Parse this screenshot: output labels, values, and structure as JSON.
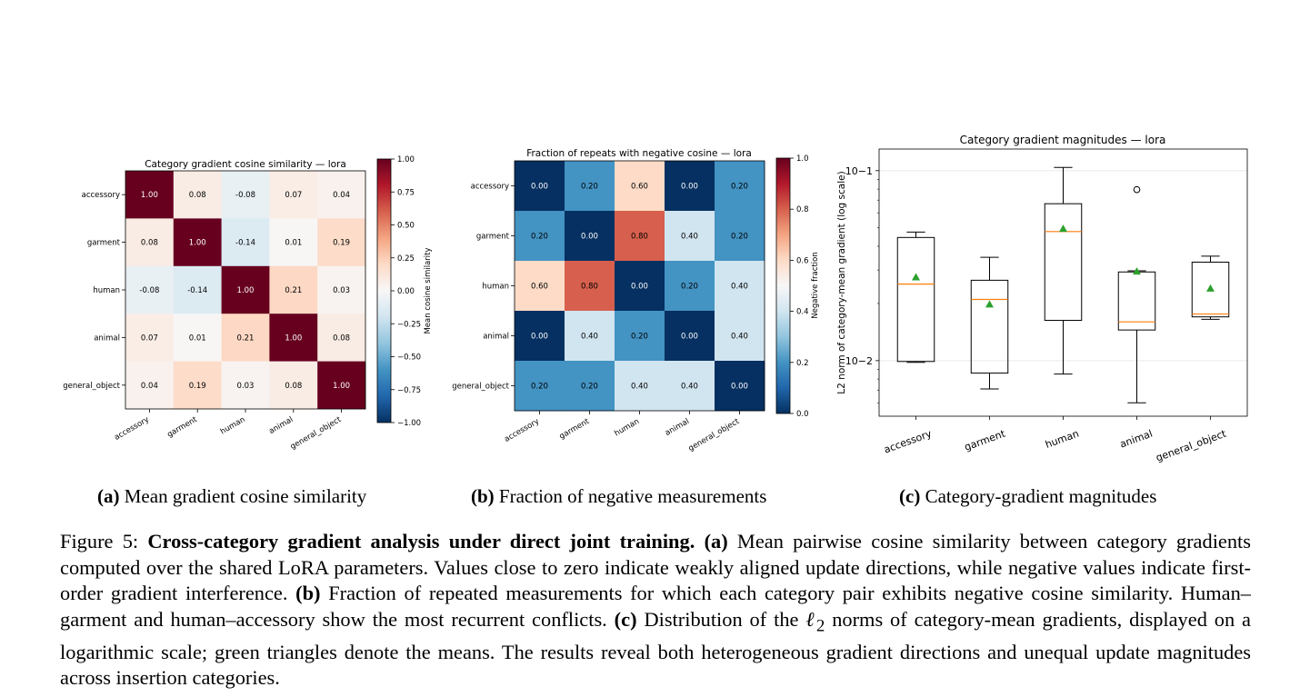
{
  "categories": [
    "accessory",
    "garment",
    "human",
    "animal",
    "general_object"
  ],
  "panel_a": {
    "title": "Category gradient cosine similarity — lora",
    "colorbar_label": "Mean cosine similarity",
    "colorbar_ticks": [
      "1.00",
      "0.75",
      "0.50",
      "0.25",
      "0.00",
      "−0.25",
      "−0.50",
      "−0.75",
      "−1.00"
    ],
    "colorbar_values": [
      1.0,
      0.75,
      0.5,
      0.25,
      0.0,
      -0.25,
      -0.5,
      -0.75,
      -1.0
    ],
    "vmin": -1.0,
    "vmax": 1.0,
    "colormap": "RdBu_r",
    "sublabel": "(a)",
    "subcaption": "Mean gradient cosine similarity"
  },
  "panel_b": {
    "title": "Fraction of repeats with negative cosine — lora",
    "colorbar_label": "Negative fraction",
    "colorbar_ticks": [
      "1.0",
      "0.8",
      "0.6",
      "0.4",
      "0.2",
      "0.0"
    ],
    "colorbar_values": [
      1.0,
      0.8,
      0.6,
      0.4,
      0.2,
      0.0
    ],
    "vmin": 0.0,
    "vmax": 1.0,
    "colormap": "RdBu_r",
    "sublabel": "(b)",
    "subcaption": "Fraction of negative measurements"
  },
  "panel_c": {
    "title": "Category gradient magnitudes — lora",
    "ylabel": "L2 norm of category-mean gradient (log scale)",
    "scale": "log",
    "ylim": [
      0.0051,
      0.13
    ],
    "sublabel": "(c)",
    "subcaption": "Category-gradient magnitudes",
    "colors": {
      "median": "#ff7f0e",
      "mean": "#2ca02c"
    }
  },
  "chart_data": [
    {
      "type": "heatmap",
      "title": "Category gradient cosine similarity — lora",
      "x": [
        "accessory",
        "garment",
        "human",
        "animal",
        "general_object"
      ],
      "y": [
        "accessory",
        "garment",
        "human",
        "animal",
        "general_object"
      ],
      "values": [
        [
          1.0,
          0.08,
          -0.08,
          0.07,
          0.04
        ],
        [
          0.08,
          1.0,
          -0.14,
          0.01,
          0.19
        ],
        [
          -0.08,
          -0.14,
          1.0,
          0.21,
          0.03
        ],
        [
          0.07,
          0.01,
          0.21,
          1.0,
          0.08
        ],
        [
          0.04,
          0.19,
          0.03,
          0.08,
          1.0
        ]
      ],
      "labels": [
        [
          "1.00",
          "0.08",
          "-0.08",
          "0.07",
          "0.04"
        ],
        [
          "0.08",
          "1.00",
          "-0.14",
          "0.01",
          "0.19"
        ],
        [
          "-0.08",
          "-0.14",
          "1.00",
          "0.21",
          "0.03"
        ],
        [
          "0.07",
          "0.01",
          "0.21",
          "1.00",
          "0.08"
        ],
        [
          "0.04",
          "0.19",
          "0.03",
          "0.08",
          "1.00"
        ]
      ],
      "clim": [
        -1.0,
        1.0
      ]
    },
    {
      "type": "heatmap",
      "title": "Fraction of repeats with negative cosine — lora",
      "x": [
        "accessory",
        "garment",
        "human",
        "animal",
        "general_object"
      ],
      "y": [
        "accessory",
        "garment",
        "human",
        "animal",
        "general_object"
      ],
      "values": [
        [
          0.0,
          0.2,
          0.6,
          0.0,
          0.2
        ],
        [
          0.2,
          0.0,
          0.8,
          0.4,
          0.2
        ],
        [
          0.6,
          0.8,
          0.0,
          0.2,
          0.4
        ],
        [
          0.0,
          0.4,
          0.2,
          0.0,
          0.4
        ],
        [
          0.2,
          0.2,
          0.4,
          0.4,
          0.0
        ]
      ],
      "labels": [
        [
          "0.00",
          "0.20",
          "0.60",
          "0.00",
          "0.20"
        ],
        [
          "0.20",
          "0.00",
          "0.80",
          "0.40",
          "0.20"
        ],
        [
          "0.60",
          "0.80",
          "0.00",
          "0.20",
          "0.40"
        ],
        [
          "0.00",
          "0.40",
          "0.20",
          "0.00",
          "0.40"
        ],
        [
          "0.20",
          "0.20",
          "0.40",
          "0.40",
          "0.00"
        ]
      ],
      "clim": [
        0.0,
        1.0
      ]
    },
    {
      "type": "box",
      "title": "Category gradient magnitudes — lora",
      "categories": [
        "accessory",
        "garment",
        "human",
        "animal",
        "general_object"
      ],
      "ylabel": "L2 norm of category-mean gradient (log scale)",
      "yscale": "log",
      "ylim": [
        0.0051,
        0.13
      ],
      "yticks": [
        0.01,
        0.1
      ],
      "ytick_labels": [
        "10−2",
        "10−1"
      ],
      "boxes": [
        {
          "whislo": 0.0098,
          "q1": 0.0099,
          "med": 0.0253,
          "q3": 0.0445,
          "whishi": 0.0475,
          "mean": 0.0275,
          "fliers": []
        },
        {
          "whislo": 0.0071,
          "q1": 0.0086,
          "med": 0.021,
          "q3": 0.0265,
          "whishi": 0.035,
          "mean": 0.0198,
          "fliers": []
        },
        {
          "whislo": 0.0085,
          "q1": 0.0163,
          "med": 0.0478,
          "q3": 0.067,
          "whishi": 0.104,
          "mean": 0.0495,
          "fliers": []
        },
        {
          "whislo": 0.006,
          "q1": 0.0145,
          "med": 0.016,
          "q3": 0.0293,
          "whishi": 0.0297,
          "mean": 0.0295,
          "fliers": [
            0.0795
          ]
        },
        {
          "whislo": 0.0165,
          "q1": 0.017,
          "med": 0.0176,
          "q3": 0.033,
          "whishi": 0.0355,
          "mean": 0.024,
          "fliers": []
        }
      ]
    }
  ],
  "caption": {
    "prefix": "Figure 5: ",
    "title": "Cross-category gradient analysis under direct joint training.",
    "a_label": "(a)",
    "a_text": "Mean pairwise cosine similarity between category gradients computed over the shared LoRA parameters. Values close to zero indicate weakly aligned update directions, while negative values indicate first-order gradient interference.",
    "b_label": "(b)",
    "b_text": "Fraction of repeated measurements for which each category pair exhibits negative cosine similarity. Human–garment and human–accessory show the most recurrent conflicts.",
    "c_label": "(c)",
    "c_text_1": "Distribution of the ",
    "ell": "ℓ",
    "ell_sub": "2",
    "c_text_2": " norms of category-mean gradients, displayed on a logarithmic scale; green triangles denote the means. The results reveal both heterogeneous gradient directions and unequal update magnitudes across insertion categories."
  }
}
